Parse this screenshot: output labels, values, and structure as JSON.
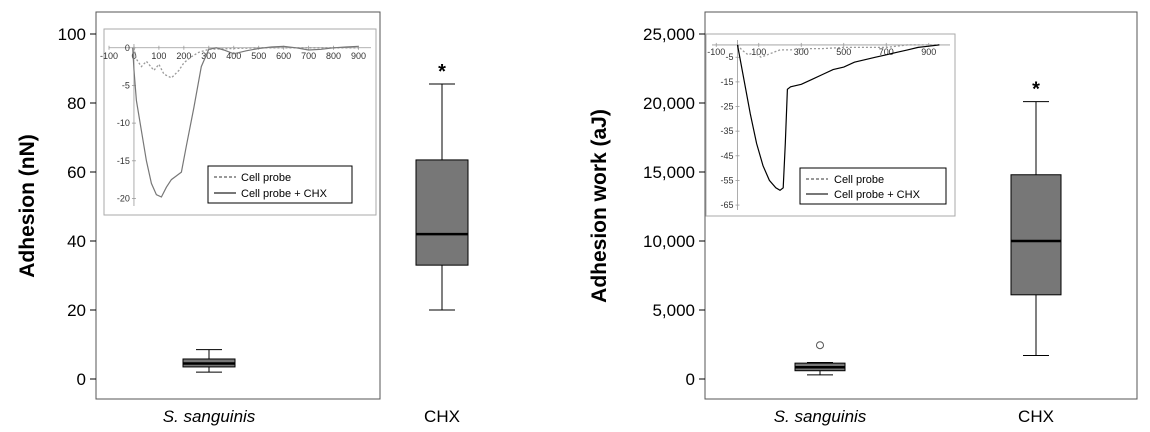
{
  "chart_data": [
    {
      "type": "box",
      "ylabel": "Adhesion (nN)",
      "ylim": [
        0,
        100
      ],
      "yticks": [
        0,
        20,
        40,
        60,
        80,
        100
      ],
      "categories": [
        "S. sanguinis",
        "CHX"
      ],
      "italic_categories": [
        true,
        false
      ],
      "boxes": [
        {
          "category": "S. sanguinis",
          "min": 2,
          "q1": 3.5,
          "median": 4.5,
          "q3": 5.8,
          "max": 8.5,
          "outliers": [],
          "annotation": "",
          "color": "#777777"
        },
        {
          "category": "CHX",
          "min": 20,
          "q1": 33,
          "median": 42,
          "q3": 63.5,
          "max": 85.5,
          "outliers": [],
          "annotation": "*",
          "color": "#777777"
        }
      ],
      "inset": {
        "type": "line",
        "xticks": [
          -100,
          0,
          100,
          200,
          300,
          400,
          500,
          600,
          700,
          800,
          900
        ],
        "xtick_labels": [
          "-100",
          "0",
          "100",
          "200",
          "300",
          "400",
          "500",
          "600",
          "700",
          "800",
          "900"
        ],
        "yticks": [
          0,
          -5,
          -10,
          -15,
          -20
        ],
        "ytick_labels": [
          "0",
          "-5",
          "-10",
          "-15",
          "-20"
        ],
        "xlim": [
          -100,
          950
        ],
        "ylim": [
          -21,
          0.5
        ],
        "legend": [
          "Cell probe",
          "Cell probe + CHX"
        ],
        "series": [
          {
            "name": "Cell probe",
            "style": "dotted",
            "color": "#999999",
            "x": [
              0,
              10,
              30,
              50,
              80,
              100,
              120,
              150,
              180,
              200,
              230,
              260,
              300,
              400,
              500,
              600,
              700,
              800,
              900
            ],
            "y": [
              0,
              -1.5,
              -2.5,
              -1.8,
              -3.0,
              -2.2,
              -3.5,
              -4.0,
              -3.0,
              -2.0,
              -1.2,
              -0.6,
              -0.2,
              -0.1,
              0,
              0,
              0,
              0,
              0
            ]
          },
          {
            "name": "Cell probe + CHX",
            "style": "solid",
            "color": "#777777",
            "x": [
              -5,
              0,
              10,
              30,
              50,
              70,
              90,
              110,
              130,
              150,
              170,
              190,
              210,
              240,
              270,
              300,
              330,
              360,
              400,
              450,
              500,
              550,
              600,
              650,
              700,
              750,
              800,
              850,
              900
            ],
            "y": [
              0,
              -3,
              -7,
              -11,
              -15,
              -18,
              -19.5,
              -19.8,
              -18.5,
              -17.5,
              -17,
              -16.5,
              -13,
              -8,
              -2.5,
              -0.2,
              0,
              -0.3,
              -0.8,
              -0.4,
              -0.1,
              0.1,
              0.2,
              0,
              -0.3,
              -0.2,
              0,
              0.1,
              0.2
            ]
          }
        ]
      }
    },
    {
      "type": "box",
      "ylabel": "Adhesion work (aJ)",
      "ylim": [
        0,
        25000
      ],
      "yticks": [
        0,
        5000,
        10000,
        15000,
        20000,
        25000
      ],
      "ytick_labels": [
        "0",
        "5,000",
        "10,000",
        "15,000",
        "20,000",
        "25,000"
      ],
      "categories": [
        "S. sanguinis",
        "CHX"
      ],
      "italic_categories": [
        true,
        false
      ],
      "boxes": [
        {
          "category": "S. sanguinis",
          "min": 300,
          "q1": 600,
          "median": 850,
          "q3": 1150,
          "max": 1200,
          "outliers": [
            2450
          ],
          "annotation": "",
          "color": "#777777"
        },
        {
          "category": "CHX",
          "min": 1700,
          "q1": 6100,
          "median": 10000,
          "q3": 14800,
          "max": 20100,
          "outliers": [],
          "annotation": "*",
          "color": "#777777"
        }
      ],
      "inset": {
        "type": "line",
        "xticks": [
          -100,
          100,
          300,
          500,
          700,
          900
        ],
        "xtick_labels": [
          "-100",
          "100",
          "300",
          "500",
          "700",
          "900"
        ],
        "yticks": [
          -5,
          -15,
          -25,
          -35,
          -45,
          -55,
          -65
        ],
        "ytick_labels": [
          "-5",
          "-15",
          "-25",
          "-35",
          "-45",
          "-55",
          "-65"
        ],
        "xlim": [
          -120,
          1000
        ],
        "ylim": [
          -67,
          2
        ],
        "legend": [
          "Cell probe",
          "Cell probe + CHX"
        ],
        "series": [
          {
            "name": "Cell probe",
            "style": "dotted",
            "color": "#999999",
            "x": [
              0,
              20,
              50,
              80,
              110,
              140,
              170,
              200,
              250,
              300,
              400,
              500,
              600,
              700,
              800,
              900,
              950
            ],
            "y": [
              0,
              -2,
              -4,
              -3,
              -5,
              -4,
              -3,
              -2,
              -2,
              -1.5,
              -1.5,
              -1,
              -1,
              -1,
              0,
              0,
              0
            ]
          },
          {
            "name": "Cell probe + CHX",
            "style": "solid",
            "color": "#000000",
            "x": [
              0,
              30,
              60,
              90,
              120,
              150,
              180,
              200,
              215,
              225,
              235,
              250,
              300,
              350,
              400,
              450,
              500,
              550,
              600,
              650,
              700,
              750,
              800,
              850,
              900,
              950
            ],
            "y": [
              0,
              -14,
              -28,
              -40,
              -49,
              -55,
              -58,
              -59,
              -58,
              -40,
              -18,
              -17,
              -16,
              -14,
              -12,
              -10,
              -9,
              -7,
              -6,
              -5,
              -4,
              -3,
              -2,
              -1,
              -0.5,
              0
            ]
          }
        ]
      }
    }
  ]
}
